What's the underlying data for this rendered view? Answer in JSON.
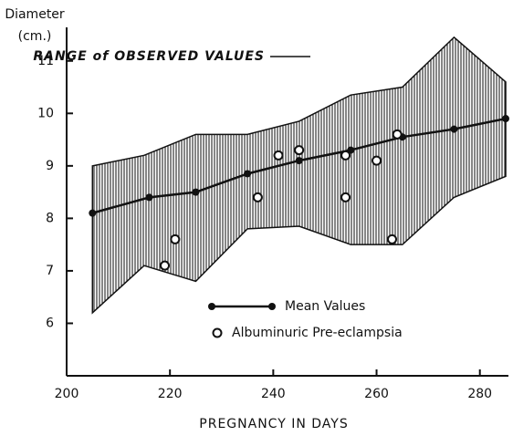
{
  "chart_data": {
    "type": "line",
    "ylabel": [
      "Diameter",
      "(cm.)"
    ],
    "xlabel": "PREGNANCY IN DAYS",
    "annotation": "RANGE of OBSERVED VALUES",
    "xlim": [
      200,
      285
    ],
    "ylim": [
      5,
      11.5
    ],
    "xticks": [
      200,
      220,
      240,
      260,
      280
    ],
    "yticks": [
      6,
      7,
      8,
      9,
      10,
      11
    ],
    "band": {
      "x": [
        205,
        215,
        225,
        235,
        245,
        255,
        265,
        275,
        285
      ],
      "upper": [
        9.0,
        9.2,
        9.6,
        9.6,
        9.85,
        10.35,
        10.5,
        11.45,
        10.6
      ],
      "lower": [
        6.2,
        7.1,
        6.8,
        7.8,
        7.85,
        7.5,
        7.5,
        8.4,
        8.8
      ]
    },
    "series": [
      {
        "name": "Mean Values",
        "type": "line",
        "color": "#111111",
        "x": [
          205,
          216,
          225,
          235,
          245,
          255,
          265,
          275,
          285
        ],
        "values": [
          8.1,
          8.4,
          8.5,
          8.85,
          9.1,
          9.3,
          9.55,
          9.7,
          9.9
        ]
      },
      {
        "name": "Albuminuric Pre-eclampsia",
        "type": "scatter",
        "color": "#111111",
        "x": [
          219,
          221,
          237,
          241,
          245,
          254,
          254,
          260,
          263,
          264
        ],
        "values": [
          7.1,
          7.6,
          8.4,
          9.2,
          9.3,
          9.2,
          8.4,
          9.1,
          7.6,
          9.6
        ]
      }
    ]
  }
}
